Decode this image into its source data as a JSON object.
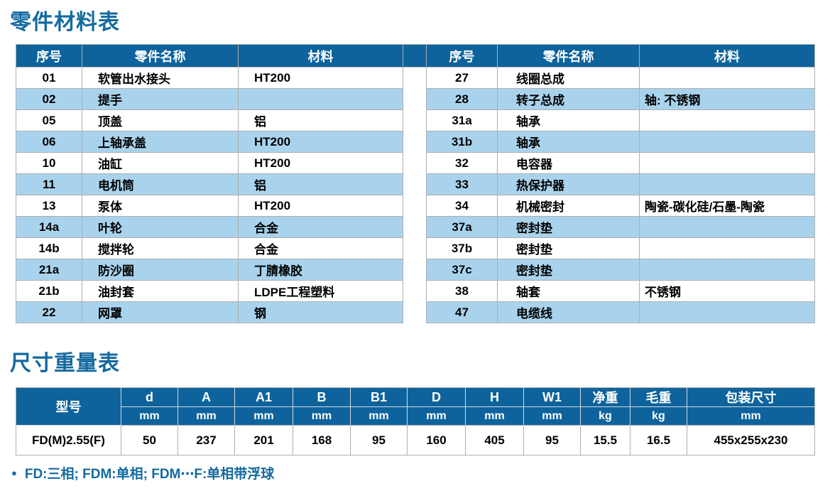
{
  "page": {
    "parts_title": "零件材料表",
    "dims_title": "尺寸重量表",
    "footnote": "FD:三相; FDM:单相; FDM⋯F:单相带浮球",
    "colors": {
      "header_blue": "#0e639c",
      "title_blue": "#146aa0",
      "alt_row_blue": "#a9d3ed",
      "grid_gray": "#aeaeae"
    }
  },
  "parts_table": {
    "headers": [
      "序号",
      "零件名称",
      "材料"
    ],
    "left_rows": [
      {
        "no": "01",
        "name": "软管出水接头",
        "material": "HT200"
      },
      {
        "no": "02",
        "name": "提手",
        "material": ""
      },
      {
        "no": "05",
        "name": "顶盖",
        "material": "铝"
      },
      {
        "no": "06",
        "name": "上轴承盖",
        "material": "HT200"
      },
      {
        "no": "10",
        "name": "油缸",
        "material": "HT200"
      },
      {
        "no": "11",
        "name": "电机筒",
        "material": "铝"
      },
      {
        "no": "13",
        "name": "泵体",
        "material": "HT200"
      },
      {
        "no": "14a",
        "name": "叶轮",
        "material": "合金"
      },
      {
        "no": "14b",
        "name": "搅拌轮",
        "material": "合金"
      },
      {
        "no": "21a",
        "name": "防沙圈",
        "material": "丁腈橡胶"
      },
      {
        "no": "21b",
        "name": "油封套",
        "material": "LDPE工程塑料"
      },
      {
        "no": "22",
        "name": "网罩",
        "material": "钢"
      }
    ],
    "right_rows": [
      {
        "no": "27",
        "name": "线圈总成",
        "material": ""
      },
      {
        "no": "28",
        "name": "转子总成",
        "material": "轴: 不锈钢"
      },
      {
        "no": "31a",
        "name": "轴承",
        "material": ""
      },
      {
        "no": "31b",
        "name": "轴承",
        "material": ""
      },
      {
        "no": "32",
        "name": "电容器",
        "material": ""
      },
      {
        "no": "33",
        "name": "热保护器",
        "material": ""
      },
      {
        "no": "34",
        "name": "机械密封",
        "material": "陶瓷-碳化硅/石墨-陶瓷"
      },
      {
        "no": "37a",
        "name": "密封垫",
        "material": ""
      },
      {
        "no": "37b",
        "name": "密封垫",
        "material": ""
      },
      {
        "no": "37c",
        "name": "密封垫",
        "material": ""
      },
      {
        "no": "38",
        "name": "轴套",
        "material": "不锈钢"
      },
      {
        "no": "47",
        "name": "电缆线",
        "material": ""
      }
    ]
  },
  "dims_table": {
    "model_header": "型号",
    "columns": [
      {
        "label": "d",
        "unit": "mm"
      },
      {
        "label": "A",
        "unit": "mm"
      },
      {
        "label": "A1",
        "unit": "mm"
      },
      {
        "label": "B",
        "unit": "mm"
      },
      {
        "label": "B1",
        "unit": "mm"
      },
      {
        "label": "D",
        "unit": "mm"
      },
      {
        "label": "H",
        "unit": "mm"
      },
      {
        "label": "W1",
        "unit": "mm"
      },
      {
        "label": "净重",
        "unit": "kg"
      },
      {
        "label": "毛重",
        "unit": "kg"
      },
      {
        "label": "包装尺寸",
        "unit": "mm"
      }
    ],
    "row": {
      "model": "FD(M)2.55(F)",
      "values": [
        "50",
        "237",
        "201",
        "168",
        "95",
        "160",
        "405",
        "95",
        "15.5",
        "16.5",
        "455x255x230"
      ]
    }
  }
}
